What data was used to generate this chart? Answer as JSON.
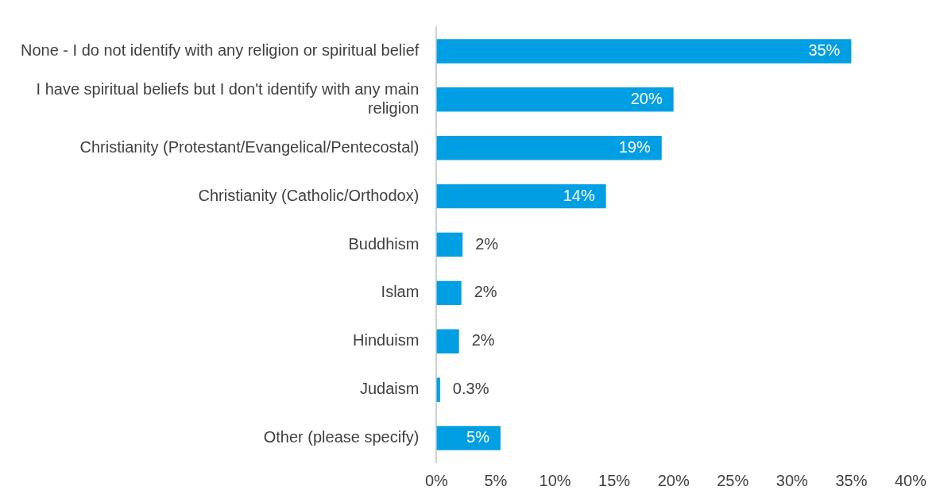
{
  "chart_data": {
    "type": "bar",
    "orientation": "horizontal",
    "categories": [
      "None - I do not identify with any religion or spiritual belief",
      "I have spiritual beliefs but I don't identify with any main religion",
      "Christianity (Protestant/Evangelical/Pentecostal)",
      "Christianity (Catholic/Orthodox)",
      "Buddhism",
      "Islam",
      "Hinduism",
      "Judaism",
      "Other (please specify)"
    ],
    "values": [
      35,
      20,
      19,
      14.3,
      2.2,
      2.1,
      1.9,
      0.3,
      5.4
    ],
    "value_labels": [
      "35%",
      "20%",
      "19%",
      "14%",
      "2%",
      "2%",
      "2%",
      "0.3%",
      "5%"
    ],
    "color": "#009fe3",
    "xlim": [
      0,
      40
    ],
    "xticks": [
      {
        "value": 0,
        "label": "0%"
      },
      {
        "value": 5,
        "label": "5%"
      },
      {
        "value": 10,
        "label": "10%"
      },
      {
        "value": 15,
        "label": "15%"
      },
      {
        "value": 20,
        "label": "20%"
      },
      {
        "value": 25,
        "label": "25%"
      },
      {
        "value": 30,
        "label": "30%"
      },
      {
        "value": 35,
        "label": "35%"
      },
      {
        "value": 40,
        "label": "40%"
      }
    ],
    "grid": false,
    "legend": false
  }
}
